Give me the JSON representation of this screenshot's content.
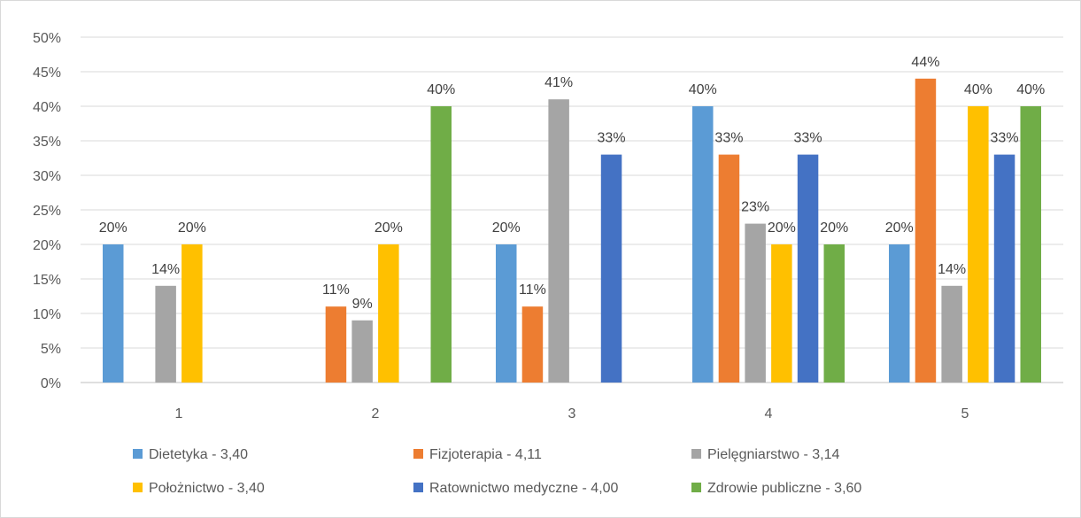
{
  "chart_data": {
    "type": "bar",
    "title": "",
    "xlabel": "",
    "ylabel": "",
    "categories": [
      "1",
      "2",
      "3",
      "4",
      "5"
    ],
    "ylim": [
      0,
      50
    ],
    "ytick_step": 5,
    "ytick_labels": [
      "0%",
      "5%",
      "10%",
      "15%",
      "20%",
      "25%",
      "30%",
      "35%",
      "40%",
      "45%",
      "50%"
    ],
    "grid": true,
    "legend_position": "bottom",
    "series": [
      {
        "name": "Dietetyka - 3,40",
        "color": "#5B9BD5",
        "values": [
          20,
          null,
          20,
          40,
          20
        ],
        "labels": [
          "20%",
          null,
          "20%",
          "40%",
          "20%"
        ]
      },
      {
        "name": "Fizjoterapia - 4,11",
        "color": "#ED7D31",
        "values": [
          null,
          11,
          11,
          33,
          44
        ],
        "labels": [
          null,
          "11%",
          "11%",
          "33%",
          "44%"
        ]
      },
      {
        "name": "Pielęgniarstwo - 3,14",
        "color": "#A5A5A5",
        "values": [
          14,
          9,
          41,
          23,
          14
        ],
        "labels": [
          "14%",
          "9%",
          "41%",
          "23%",
          "14%"
        ]
      },
      {
        "name": "Położnictwo - 3,40",
        "color": "#FFC000",
        "values": [
          20,
          20,
          null,
          20,
          40
        ],
        "labels": [
          "20%",
          "20%",
          null,
          "20%",
          "40%"
        ]
      },
      {
        "name": "Ratownictwo medyczne - 4,00",
        "color": "#4472C4",
        "values": [
          null,
          null,
          33,
          33,
          33
        ],
        "labels": [
          null,
          null,
          "33%",
          "33%",
          "33%"
        ]
      },
      {
        "name": "Zdrowie publiczne - 3,60",
        "color": "#70AD47",
        "values": [
          null,
          40,
          null,
          20,
          40
        ],
        "labels": [
          null,
          "40%",
          null,
          "20%",
          "40%"
        ]
      }
    ]
  }
}
